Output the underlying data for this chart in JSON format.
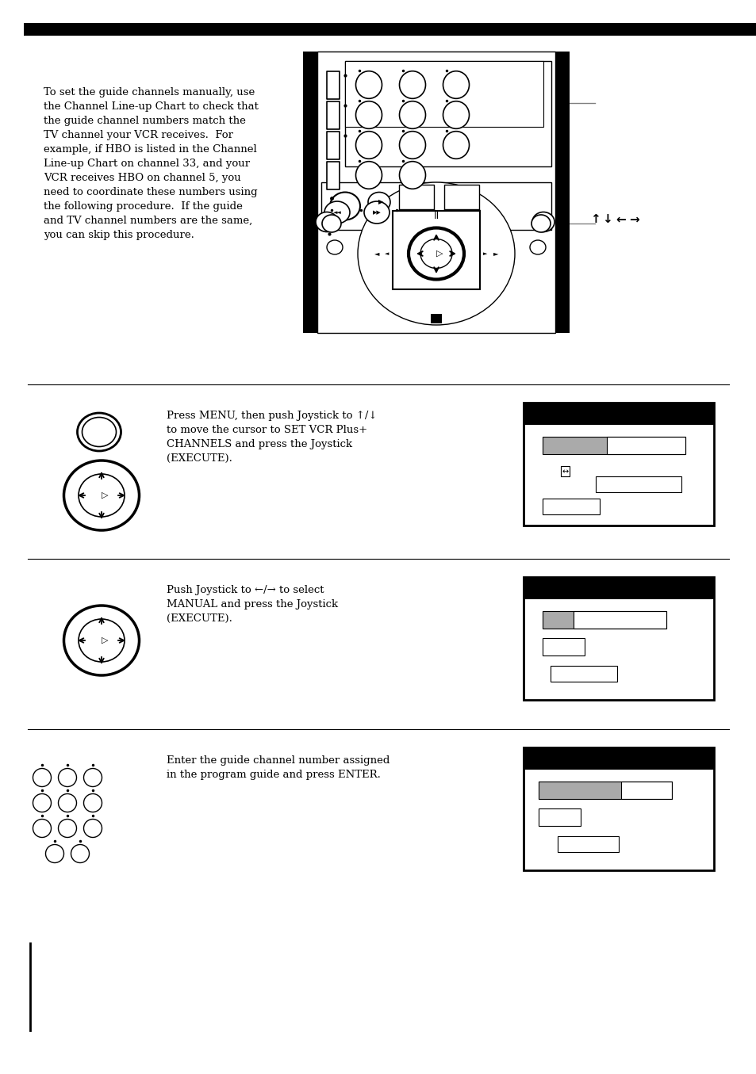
{
  "bg_color": "#ffffff",
  "black_bar_color": "#000000",
  "gray_color": "#aaaaaa",
  "text_color": "#000000",
  "paragraph_text": "To set the guide channels manually, use\nthe Channel Line-up Chart to check that\nthe guide channel numbers match the\nTV channel your VCR receives.  For\nexample, if HBO is listed in the Channel\nLine-up Chart on channel 33, and your\nVCR receives HBO on channel 5, you\nneed to coordinate these numbers using\nthe following procedure.  If the guide\nand TV channel numbers are the same,\nyou can skip this procedure.",
  "step1_text": "Press MENU, then push Joystick to ↑/↓\nto move the cursor to SET VCR Plus+\nCHANNELS and press the Joystick\n(EXECUTE).",
  "step2_text": "Push Joystick to ←/→ to select\nMANUAL and press the Joystick\n(EXECUTE).",
  "step3_text": "Enter the guide channel number assigned\nin the program guide and press ENTER."
}
